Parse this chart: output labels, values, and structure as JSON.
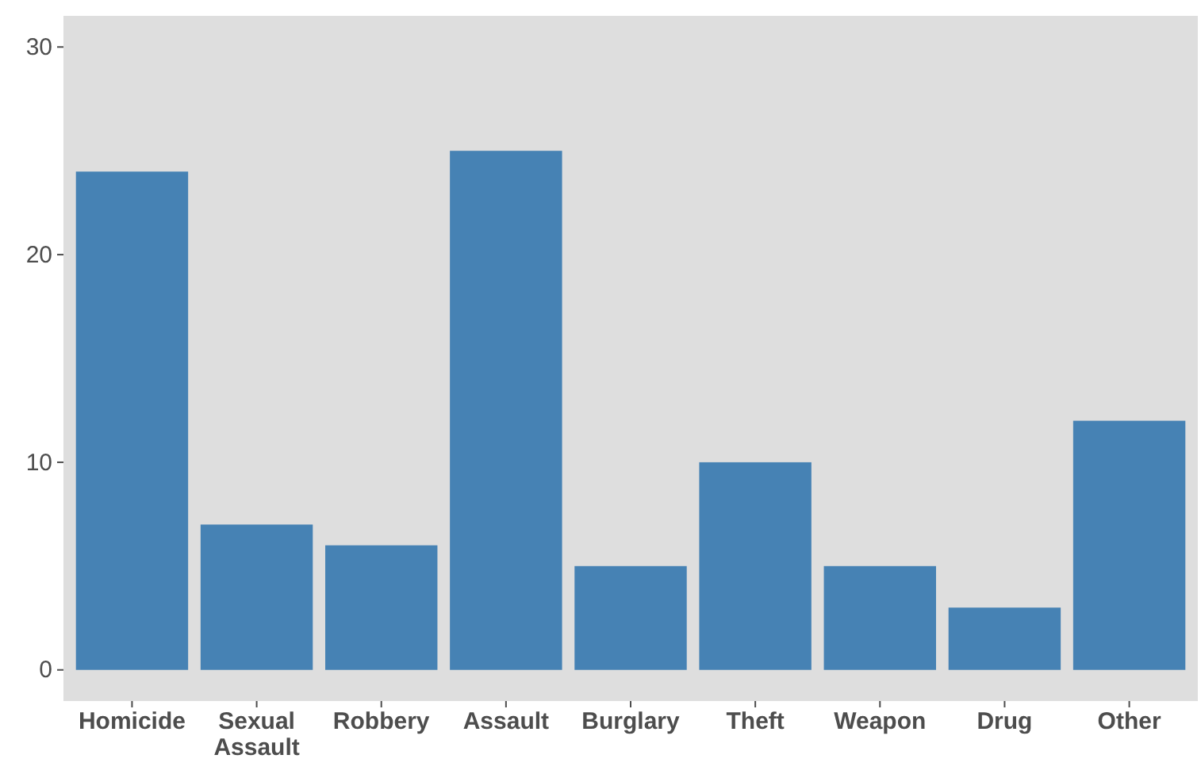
{
  "chart_data": {
    "type": "bar",
    "categories": [
      "Homicide",
      "Sexual Assault",
      "Robbery",
      "Assault",
      "Burglary",
      "Theft",
      "Weapon",
      "Drug",
      "Other"
    ],
    "values": [
      24,
      7,
      6,
      25,
      5,
      10,
      5,
      3,
      12
    ],
    "color": "#4682b4",
    "ylim": [
      -1.5,
      31.5
    ],
    "yticks": [
      0,
      10,
      20,
      30
    ],
    "grid": false
  }
}
